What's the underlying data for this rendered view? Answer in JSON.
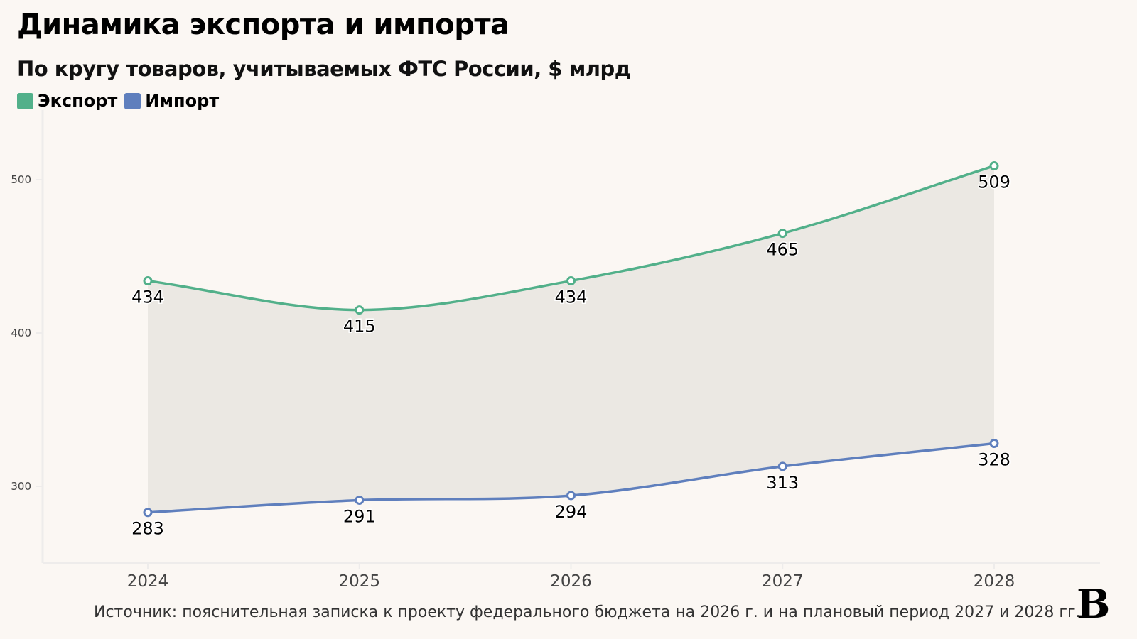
{
  "title": "Динамика экспорта и импорта",
  "subtitle": "По кругу товаров, учитываемых ФТС России, $ млрд",
  "source": "Источник: пояснительная записка к проекту федерального бюджета на 2026 г. и на плановый период 2027 и 2028 гг.",
  "logo": "В",
  "chart_data": {
    "type": "line",
    "title": "Динамика экспорта и импорта",
    "subtitle": "По кругу товаров, учитываемых ФТС России, $ млрд",
    "categories": [
      "2024",
      "2025",
      "2026",
      "2027",
      "2028"
    ],
    "series": [
      {
        "name": "Экспорт",
        "color": "#52b08a",
        "values": [
          434,
          415,
          434,
          465,
          509
        ]
      },
      {
        "name": "Импорт",
        "color": "#5f7fbd",
        "values": [
          283,
          291,
          294,
          313,
          328
        ]
      }
    ],
    "yticks": [
      300,
      400,
      500
    ],
    "ylim": [
      250,
      543
    ],
    "area_between_color": "#ebe8e3",
    "grid": false,
    "legend": "top-left"
  }
}
